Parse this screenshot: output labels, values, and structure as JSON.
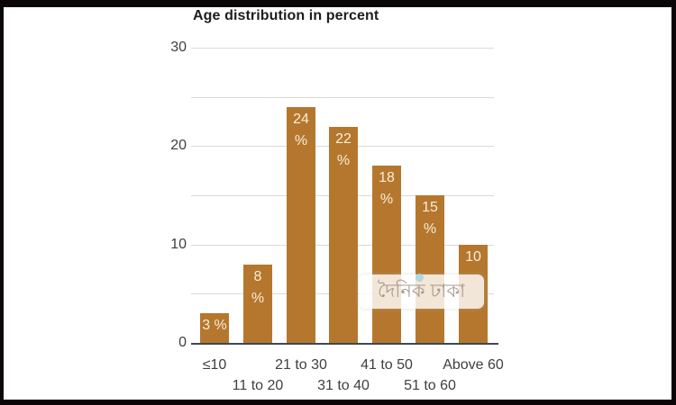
{
  "chart_data": {
    "type": "bar",
    "title": "Age distribution in percent",
    "categories": [
      "≤10",
      "11 to 20",
      "21 to 30",
      "31 to 40",
      "41 to 50",
      "51 to 60",
      "Above 60"
    ],
    "values": [
      3,
      8,
      24,
      22,
      18,
      15,
      10
    ],
    "bar_value_labels": [
      [
        "3 %"
      ],
      [
        "8",
        "%"
      ],
      [
        "24",
        "%"
      ],
      [
        "22",
        "%"
      ],
      [
        "18",
        "%"
      ],
      [
        "15",
        "%"
      ],
      [
        "10"
      ]
    ],
    "xlabel": "",
    "ylabel": "",
    "ylim": [
      0,
      30
    ],
    "y_ticks": [
      0,
      10,
      20,
      30
    ],
    "y_tick_labels": [
      "0",
      "10",
      "20",
      "30"
    ],
    "y_gridlines": [
      0,
      5,
      10,
      15,
      20,
      25,
      30
    ],
    "grid": true,
    "legend": "none",
    "colors": {
      "bar": "#b5772e",
      "bar_label": "#f7eed8",
      "axis_line": "#3d4852",
      "gridline": "#dadada",
      "title_text": "#1d1d1d",
      "tick_text": "#3f3f3f",
      "background": "#ffffff",
      "frame": "#0b0508"
    }
  },
  "watermark": {
    "text": "দৈনিক ঢাকা",
    "dot_color": "#a8d6de"
  }
}
